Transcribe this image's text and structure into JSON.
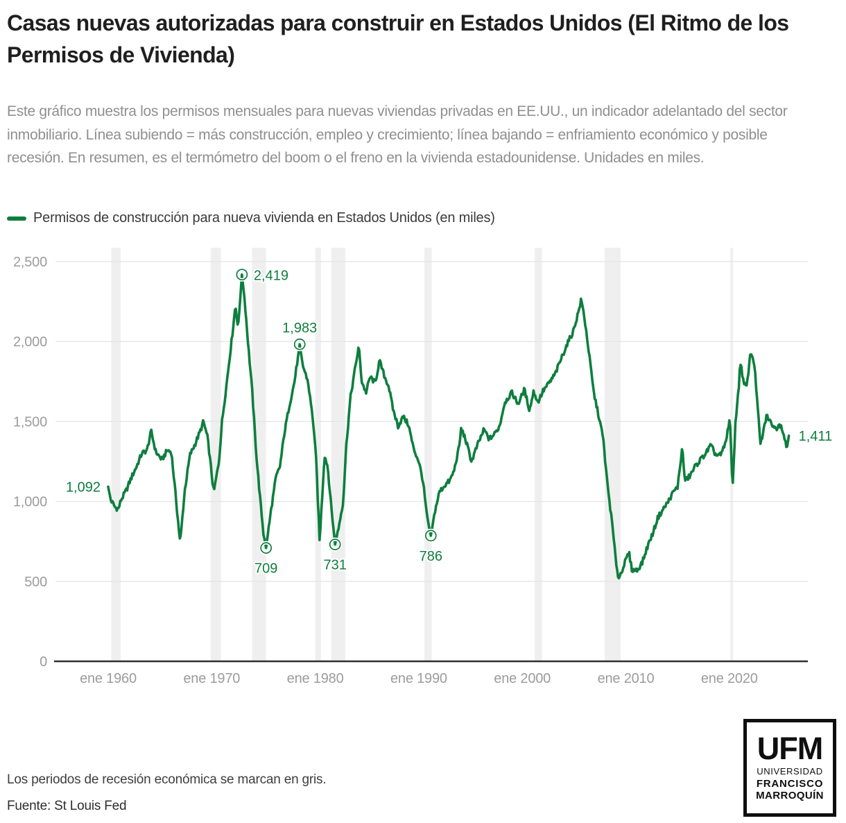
{
  "header": {
    "title": "Casas nuevas autorizadas para construir en Estados Unidos (El Ritmo de los Permisos de Vivienda)",
    "subtitle": "Este gráfico muestra los permisos mensuales para nuevas viviendas privadas en EE.UU., un indicador adelantado del sector inmobiliario. Línea subiendo = más construcción, empleo y crecimiento; línea bajando = enfriamiento económico y posible recesión. En resumen, es el termómetro del boom o el freno en la vivienda estadounidense. Unidades en miles."
  },
  "legend": {
    "label": "Permisos de construcción para nueva vivienda en Estados Unidos (en miles)",
    "swatch_color": "#0e7e3e"
  },
  "footer": {
    "note": "Los periodos de recesión económica se marcan en gris.",
    "source": "Fuente: St Louis Fed"
  },
  "logo": {
    "acronym": "UFM",
    "line2": "UNIVERSIDAD",
    "line3": "FRANCISCO",
    "line4": "MARROQUÍN"
  },
  "colors": {
    "line_green": "#0e7e3e",
    "grid": "#e4e4e4",
    "recession_band": "#efefef",
    "axis_line": "#2f2f2f",
    "axis_label": "#9c9c9c",
    "title_text": "#1f1f1f",
    "subtitle_text": "#8f8f8f"
  },
  "chart_data": {
    "type": "line",
    "title": "Permisos de construcción para nueva vivienda en Estados Unidos (en miles)",
    "xlabel": "",
    "ylabel": "",
    "unit": "miles de permisos (tasa anual)",
    "grid": true,
    "legend_position": "top-left",
    "ylim": [
      0,
      2500
    ],
    "xlim": [
      1955,
      2027.7
    ],
    "y_ticks": [
      {
        "value": 0,
        "label": "0"
      },
      {
        "value": 500,
        "label": "500"
      },
      {
        "value": 1000,
        "label": "1,000"
      },
      {
        "value": 1500,
        "label": "1,500"
      },
      {
        "value": 2000,
        "label": "2,000"
      },
      {
        "value": 2500,
        "label": "2,500"
      }
    ],
    "x_ticks": [
      {
        "year": 1960,
        "label": "ene 1960"
      },
      {
        "year": 1970,
        "label": "ene 1970"
      },
      {
        "year": 1980,
        "label": "ene 1980"
      },
      {
        "year": 1990,
        "label": "ene 1990"
      },
      {
        "year": 2000,
        "label": "ene 2000"
      },
      {
        "year": 2010,
        "label": "ene 2010"
      },
      {
        "year": 2020,
        "label": "ene 2020"
      }
    ],
    "recessions": [
      [
        1960.3,
        1961.2
      ],
      [
        1969.9,
        1970.9
      ],
      [
        1973.9,
        1975.25
      ],
      [
        1980.0,
        1980.55
      ],
      [
        1981.55,
        1982.9
      ],
      [
        1990.55,
        1991.25
      ],
      [
        2001.2,
        2001.9
      ],
      [
        2007.95,
        2009.5
      ],
      [
        2020.1,
        2020.35
      ]
    ],
    "annotations": [
      {
        "label": "1,092",
        "year": 1960.0,
        "value": 1092,
        "pos": "left",
        "marker": false
      },
      {
        "label": "2,419",
        "year": 1972.917,
        "value": 2419,
        "pos": "right-of-marker",
        "marker": true
      },
      {
        "label": "1,983",
        "year": 1978.5,
        "value": 1983,
        "pos": "above",
        "marker": true
      },
      {
        "label": "709",
        "year": 1975.25,
        "value": 709,
        "pos": "below",
        "marker": true
      },
      {
        "label": "731",
        "year": 1981.917,
        "value": 731,
        "pos": "below",
        "marker": true
      },
      {
        "label": "786",
        "year": 1991.167,
        "value": 786,
        "pos": "below",
        "marker": true
      },
      {
        "label": "1,411",
        "year": 2025.75,
        "value": 1411,
        "pos": "right",
        "marker": false
      }
    ],
    "series": [
      {
        "name": "Permisos de construcción para nueva vivienda en Estados Unidos (en miles)",
        "color": "#0e7e3e",
        "anchors": [
          [
            1960.0,
            1092
          ],
          [
            1960.25,
            1010
          ],
          [
            1960.7,
            960
          ],
          [
            1961.0,
            955
          ],
          [
            1961.25,
            1010
          ],
          [
            1961.75,
            1070
          ],
          [
            1962.25,
            1150
          ],
          [
            1962.75,
            1220
          ],
          [
            1963.25,
            1300
          ],
          [
            1963.75,
            1320
          ],
          [
            1964.15,
            1440
          ],
          [
            1964.6,
            1310
          ],
          [
            1965.2,
            1260
          ],
          [
            1965.7,
            1320
          ],
          [
            1966.1,
            1310
          ],
          [
            1966.5,
            1050
          ],
          [
            1966.95,
            740
          ],
          [
            1967.4,
            1070
          ],
          [
            1967.9,
            1290
          ],
          [
            1968.4,
            1360
          ],
          [
            1968.9,
            1440
          ],
          [
            1969.2,
            1500
          ],
          [
            1969.6,
            1400
          ],
          [
            1970.2,
            1055
          ],
          [
            1970.7,
            1250
          ],
          [
            1971.0,
            1500
          ],
          [
            1971.5,
            1770
          ],
          [
            1972.0,
            2050
          ],
          [
            1972.3,
            2230
          ],
          [
            1972.55,
            2080
          ],
          [
            1972.917,
            2419
          ],
          [
            1973.2,
            2250
          ],
          [
            1973.5,
            2000
          ],
          [
            1973.9,
            1700
          ],
          [
            1974.3,
            1300
          ],
          [
            1974.7,
            1000
          ],
          [
            1975.0,
            800
          ],
          [
            1975.25,
            709
          ],
          [
            1975.7,
            930
          ],
          [
            1976.2,
            1150
          ],
          [
            1976.6,
            1220
          ],
          [
            1977.0,
            1420
          ],
          [
            1977.5,
            1600
          ],
          [
            1978.0,
            1750
          ],
          [
            1978.5,
            1983
          ],
          [
            1978.8,
            1850
          ],
          [
            1979.3,
            1750
          ],
          [
            1979.8,
            1500
          ],
          [
            1980.1,
            1250
          ],
          [
            1980.42,
            751
          ],
          [
            1980.9,
            1290
          ],
          [
            1981.2,
            1220
          ],
          [
            1981.5,
            1000
          ],
          [
            1981.917,
            731
          ],
          [
            1982.3,
            850
          ],
          [
            1982.7,
            1000
          ],
          [
            1983.0,
            1350
          ],
          [
            1983.4,
            1650
          ],
          [
            1983.9,
            1850
          ],
          [
            1984.2,
            1970
          ],
          [
            1984.5,
            1750
          ],
          [
            1984.9,
            1680
          ],
          [
            1985.3,
            1780
          ],
          [
            1985.8,
            1740
          ],
          [
            1986.2,
            1880
          ],
          [
            1986.7,
            1780
          ],
          [
            1987.1,
            1720
          ],
          [
            1987.5,
            1580
          ],
          [
            1988.0,
            1470
          ],
          [
            1988.5,
            1530
          ],
          [
            1989.0,
            1480
          ],
          [
            1989.5,
            1330
          ],
          [
            1990.0,
            1250
          ],
          [
            1990.4,
            1130
          ],
          [
            1990.8,
            900
          ],
          [
            1991.167,
            786
          ],
          [
            1991.6,
            950
          ],
          [
            1992.0,
            1060
          ],
          [
            1992.5,
            1100
          ],
          [
            1993.0,
            1130
          ],
          [
            1993.4,
            1190
          ],
          [
            1993.9,
            1340
          ],
          [
            1994.1,
            1460
          ],
          [
            1994.5,
            1390
          ],
          [
            1995.1,
            1250
          ],
          [
            1995.6,
            1340
          ],
          [
            1996.3,
            1450
          ],
          [
            1996.8,
            1390
          ],
          [
            1997.3,
            1420
          ],
          [
            1997.8,
            1470
          ],
          [
            1998.3,
            1620
          ],
          [
            1999.0,
            1680
          ],
          [
            1999.6,
            1610
          ],
          [
            2000.2,
            1700
          ],
          [
            2000.7,
            1570
          ],
          [
            2001.1,
            1690
          ],
          [
            2001.5,
            1620
          ],
          [
            2002.0,
            1690
          ],
          [
            2002.7,
            1750
          ],
          [
            2003.2,
            1800
          ],
          [
            2003.8,
            1900
          ],
          [
            2004.3,
            1980
          ],
          [
            2004.9,
            2060
          ],
          [
            2005.4,
            2180
          ],
          [
            2005.7,
            2263
          ],
          [
            2006.0,
            2150
          ],
          [
            2006.4,
            1950
          ],
          [
            2006.9,
            1680
          ],
          [
            2007.3,
            1560
          ],
          [
            2007.8,
            1400
          ],
          [
            2008.2,
            1120
          ],
          [
            2008.7,
            850
          ],
          [
            2009.0,
            650
          ],
          [
            2009.3,
            513
          ],
          [
            2009.8,
            600
          ],
          [
            2010.3,
            680
          ],
          [
            2010.6,
            570
          ],
          [
            2011.1,
            570
          ],
          [
            2011.6,
            620
          ],
          [
            2012.1,
            720
          ],
          [
            2012.6,
            800
          ],
          [
            2013.1,
            900
          ],
          [
            2013.6,
            950
          ],
          [
            2014.1,
            1000
          ],
          [
            2014.6,
            1060
          ],
          [
            2015.0,
            1090
          ],
          [
            2015.45,
            1337
          ],
          [
            2015.7,
            1130
          ],
          [
            2016.2,
            1160
          ],
          [
            2016.7,
            1220
          ],
          [
            2017.2,
            1260
          ],
          [
            2017.7,
            1300
          ],
          [
            2018.2,
            1350
          ],
          [
            2018.7,
            1290
          ],
          [
            2019.2,
            1290
          ],
          [
            2019.7,
            1380
          ],
          [
            2020.05,
            1536
          ],
          [
            2020.3,
            1066
          ],
          [
            2020.6,
            1510
          ],
          [
            2020.9,
            1700
          ],
          [
            2021.05,
            1883
          ],
          [
            2021.4,
            1730
          ],
          [
            2021.7,
            1720
          ],
          [
            2021.95,
            1890
          ],
          [
            2022.1,
            1931
          ],
          [
            2022.4,
            1870
          ],
          [
            2022.7,
            1620
          ],
          [
            2023.0,
            1354
          ],
          [
            2023.3,
            1440
          ],
          [
            2023.6,
            1541
          ],
          [
            2023.9,
            1500
          ],
          [
            2024.2,
            1480
          ],
          [
            2024.5,
            1450
          ],
          [
            2024.8,
            1490
          ],
          [
            2025.1,
            1460
          ],
          [
            2025.35,
            1390
          ],
          [
            2025.55,
            1330
          ],
          [
            2025.75,
            1411
          ]
        ],
        "exact_points": [
          [
            1960.0,
            1092
          ],
          [
            1972.917,
            2419
          ],
          [
            1975.25,
            709
          ],
          [
            1978.5,
            1983
          ],
          [
            1981.917,
            731
          ],
          [
            1991.167,
            786
          ],
          [
            2025.75,
            1411
          ]
        ],
        "x_start": 1960.0,
        "x_end": 2025.75,
        "frequency": "monthly"
      }
    ]
  }
}
